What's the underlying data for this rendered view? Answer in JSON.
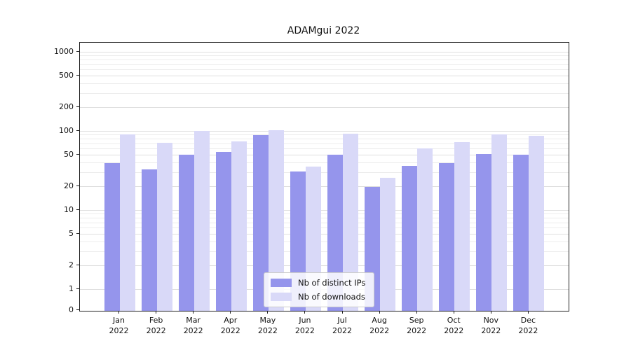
{
  "figure": {
    "title": "ADAMgui 2022"
  },
  "chart_data": {
    "type": "bar",
    "title": "ADAMgui 2022",
    "y_scale": "log",
    "ylim": [
      0,
      1000
    ],
    "grid": true,
    "legend_position": "lower center",
    "months": [
      "Jan",
      "Feb",
      "Mar",
      "Apr",
      "May",
      "Jun",
      "Jul",
      "Aug",
      "Sep",
      "Oct",
      "Nov",
      "Dec"
    ],
    "year": "2022",
    "y_ticks": [
      0,
      1,
      2,
      5,
      10,
      20,
      50,
      100,
      200,
      500,
      1000
    ],
    "y_minor_gridlines": [
      3,
      4,
      6,
      7,
      8,
      9,
      30,
      40,
      60,
      70,
      80,
      90,
      300,
      400,
      600,
      700,
      800,
      900
    ],
    "series": [
      {
        "name": "Nb of distinct IPs",
        "color": "#9595ec",
        "values": [
          40,
          33,
          51,
          55,
          90,
          31,
          51,
          20,
          37,
          40,
          52,
          51
        ]
      },
      {
        "name": "Nb of downloads",
        "color": "#d9d9f8",
        "values": [
          92,
          72,
          102,
          75,
          105,
          36,
          95,
          26,
          61,
          74,
          93,
          88
        ]
      }
    ]
  }
}
